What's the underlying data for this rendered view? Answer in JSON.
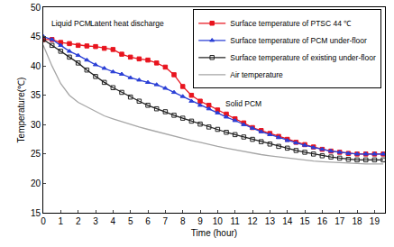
{
  "chart_data": {
    "type": "line",
    "x_label": "Time (hour)",
    "y_label": "Temperature(℃)",
    "x": [
      0,
      0.5,
      1,
      1.5,
      2,
      2.5,
      3,
      3.5,
      4,
      4.5,
      5,
      5.5,
      6,
      6.5,
      7,
      7.5,
      8,
      8.5,
      9,
      9.5,
      10,
      10.5,
      11,
      11.5,
      12,
      12.5,
      13,
      13.5,
      14,
      14.5,
      15,
      15.5,
      16,
      16.5,
      17,
      17.5,
      18,
      18.5,
      19,
      19.5
    ],
    "series": [
      {
        "name": "Surface temperature of PTSC 44 ℃",
        "color": "#e8141e",
        "marker": "square",
        "line_style": "solid",
        "values": [
          44.5,
          44.5,
          44,
          43.8,
          43.5,
          43.4,
          43.3,
          43,
          42.8,
          42,
          41.5,
          41.2,
          41,
          40.5,
          39.8,
          38.5,
          36.5,
          35,
          34,
          33.3,
          32.5,
          31.8,
          31,
          30.3,
          29.5,
          29,
          28.5,
          28,
          27.5,
          27,
          26.6,
          26.2,
          25.8,
          25.5,
          25.3,
          25.1,
          25,
          25,
          25,
          25
        ]
      },
      {
        "name": "Surface temperature of PCM under-floor",
        "color": "#2a3fd6",
        "marker": "triangle-up",
        "line_style": "solid",
        "values": [
          45,
          44.5,
          43.5,
          42.5,
          41.8,
          41,
          40.2,
          39.6,
          39,
          38.6,
          38,
          37.6,
          37.2,
          36.8,
          36.2,
          35.5,
          34.8,
          34,
          33.3,
          32.7,
          32,
          31.3,
          30.7,
          30,
          29.4,
          28.8,
          28.3,
          27.8,
          27.3,
          26.9,
          26.5,
          26.1,
          25.8,
          25.5,
          25.3,
          25.1,
          25,
          25,
          25,
          25
        ]
      },
      {
        "name": "Surface temperature of existing under-floor",
        "color": "#222222",
        "marker": "square-open",
        "line_style": "solid",
        "values": [
          44.5,
          43.5,
          42.5,
          41.5,
          40.5,
          39.3,
          38.2,
          37.2,
          36.3,
          35.5,
          34.7,
          34,
          33.3,
          32.7,
          32.2,
          31.6,
          31.1,
          30.6,
          30.1,
          29.6,
          29.2,
          28.7,
          28.3,
          27.9,
          27.5,
          27.1,
          26.7,
          26.3,
          26,
          25.6,
          25.3,
          25,
          24.7,
          24.5,
          24.3,
          24.1,
          24,
          24,
          24,
          24
        ]
      },
      {
        "name": "Air temperature",
        "color": "#a6a6a6",
        "marker": "none",
        "line_style": "solid",
        "values": [
          43.5,
          40,
          37,
          35,
          33.8,
          33,
          32.2,
          31.5,
          31,
          30.5,
          30,
          29.6,
          29.2,
          28.8,
          28.4,
          28,
          27.6,
          27.3,
          27,
          26.6,
          26.3,
          26,
          25.7,
          25.4,
          25.1,
          24.9,
          24.7,
          24.5,
          24.3,
          24.1,
          24,
          23.8,
          23.7,
          23.6,
          23.5,
          23.4,
          23.3,
          23.3,
          23.3,
          23.3
        ]
      }
    ],
    "annotations": [
      {
        "text": "Liquid PCM",
        "x": 1.6,
        "y": 47.3
      },
      {
        "text": "Latent heat discharge",
        "x": 4.8,
        "y": 47.3
      },
      {
        "text": "Solid PCM",
        "x": 11.5,
        "y": 33.6
      }
    ],
    "xlim": [
      0,
      19.6
    ],
    "xticks": [
      0,
      1,
      2,
      3,
      4,
      5,
      6,
      7,
      8,
      9,
      10,
      11,
      12,
      13,
      14,
      15,
      16,
      17,
      18,
      19
    ],
    "ylim": [
      15,
      50
    ],
    "yticks": [
      15,
      20,
      25,
      30,
      35,
      40,
      45,
      50
    ],
    "grid": false,
    "legend": "top-right"
  }
}
